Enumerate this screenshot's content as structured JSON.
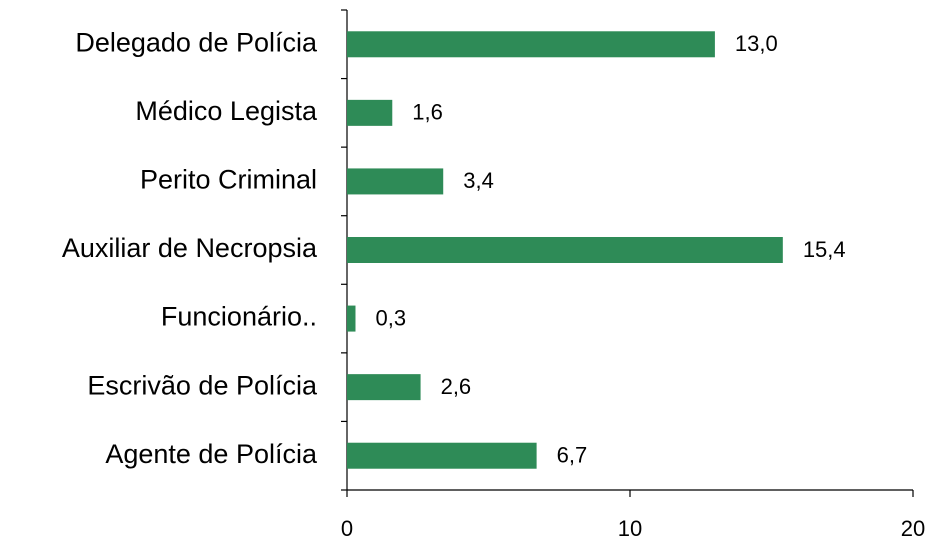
{
  "chart_data": {
    "type": "barh",
    "categories": [
      "Delegado de Polícia",
      "Médico Legista",
      "Perito Criminal",
      "Auxiliar de Necropsia",
      "Funcionário..",
      "Escrivão de Polícia",
      "Agente de Polícia"
    ],
    "values": [
      13.0,
      1.6,
      3.4,
      15.4,
      0.3,
      2.6,
      6.7
    ],
    "value_labels": [
      "13,0",
      "1,6",
      "3,4",
      "15,4",
      "0,3",
      "2,6",
      "6,7"
    ],
    "color": "#2e8b57",
    "xlim": [
      0,
      20
    ],
    "xticks": [
      0,
      10,
      20
    ]
  }
}
